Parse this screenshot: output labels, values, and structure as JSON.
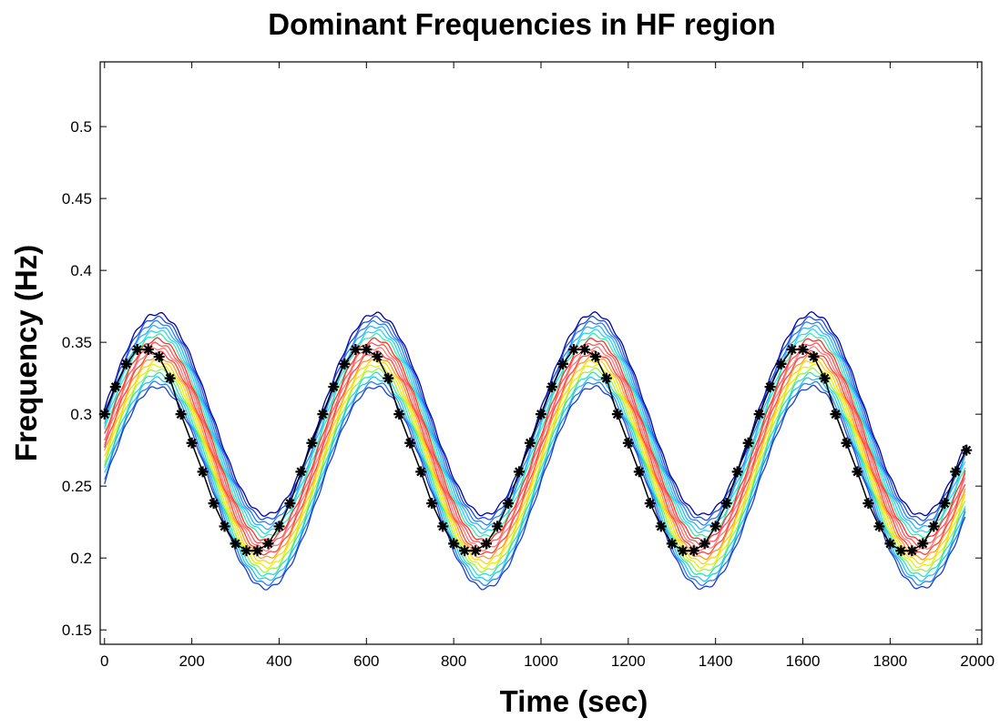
{
  "chart_data": {
    "type": "line",
    "title": "Dominant Frequencies in HF region",
    "xlabel": "Time (sec)",
    "ylabel": "Frequency (Hz)",
    "xlim": [
      -10,
      2010
    ],
    "ylim": [
      0.14,
      0.545
    ],
    "xticks": [
      0,
      200,
      400,
      600,
      800,
      1000,
      1200,
      1400,
      1600,
      1800,
      2000
    ],
    "yticks": [
      0.15,
      0.2,
      0.25,
      0.3,
      0.35,
      0.4,
      0.45,
      0.5
    ],
    "xtick_labels": [
      "0",
      "200",
      "400",
      "600",
      "800",
      "1000",
      "1200",
      "1400",
      "1600",
      "1800",
      "2000"
    ],
    "ytick_labels": [
      "0.15",
      "0.2",
      "0.25",
      "0.3",
      "0.35",
      "0.4",
      "0.45",
      "0.5"
    ],
    "grid": false,
    "series": [
      {
        "style": "black line with star markers (ridge of contour map)",
        "color": "#000000",
        "x": [
          0,
          25,
          50,
          75,
          100,
          125,
          150,
          175,
          200,
          225,
          250,
          275,
          300,
          325,
          350,
          375,
          400,
          425,
          450,
          475,
          500,
          525,
          550,
          575,
          600,
          625,
          650,
          675,
          700,
          725,
          750,
          775,
          800,
          825,
          850,
          875,
          900,
          925,
          950,
          975,
          1000,
          1025,
          1050,
          1075,
          1100,
          1125,
          1150,
          1175,
          1200,
          1225,
          1250,
          1275,
          1300,
          1325,
          1350,
          1375,
          1400,
          1425,
          1450,
          1475,
          1500,
          1525,
          1550,
          1575,
          1600,
          1625,
          1650,
          1675,
          1700,
          1725,
          1750,
          1775,
          1800,
          1825,
          1850,
          1875,
          1900,
          1925,
          1950,
          1975
        ],
        "y": [
          0.3,
          0.319,
          0.335,
          0.345,
          0.345,
          0.34,
          0.325,
          0.3,
          0.28,
          0.26,
          0.238,
          0.222,
          0.21,
          0.205,
          0.205,
          0.21,
          0.222,
          0.238,
          0.26,
          0.28,
          0.3,
          0.319,
          0.335,
          0.345,
          0.345,
          0.34,
          0.325,
          0.3,
          0.28,
          0.26,
          0.238,
          0.222,
          0.21,
          0.205,
          0.205,
          0.21,
          0.222,
          0.238,
          0.26,
          0.28,
          0.3,
          0.319,
          0.335,
          0.345,
          0.345,
          0.34,
          0.325,
          0.3,
          0.28,
          0.26,
          0.238,
          0.222,
          0.21,
          0.205,
          0.205,
          0.21,
          0.222,
          0.238,
          0.26,
          0.28,
          0.3,
          0.319,
          0.335,
          0.345,
          0.345,
          0.34,
          0.325,
          0.3,
          0.28,
          0.26,
          0.238,
          0.222,
          0.21,
          0.205,
          0.205,
          0.21,
          0.222,
          0.238,
          0.26,
          0.275
        ]
      }
    ],
    "contour": {
      "center_frequency": 0.275,
      "amplitude": 0.07,
      "period_sec": 500,
      "x_range": [
        0,
        1975
      ],
      "offsets": [
        0.025,
        0.022,
        0.019,
        0.016,
        0.013,
        0.01,
        0.007,
        0.004,
        0.001,
        -0.002,
        -0.005,
        -0.008,
        -0.011,
        -0.014,
        -0.017,
        -0.02,
        -0.023,
        -0.026
      ],
      "colors": [
        "#0000aa",
        "#1d4fd8",
        "#2f7ff0",
        "#33b0ff",
        "#29d6ee",
        "#3fe8a8",
        "#ff3030",
        "#ff5555",
        "#ff7a7a",
        "#ff3f3f",
        "#ff9a20",
        "#ffd11a",
        "#e8f000",
        "#9df050",
        "#2ee0c0",
        "#22c6f5",
        "#2f7ff0",
        "#1a3fcc"
      ]
    }
  }
}
